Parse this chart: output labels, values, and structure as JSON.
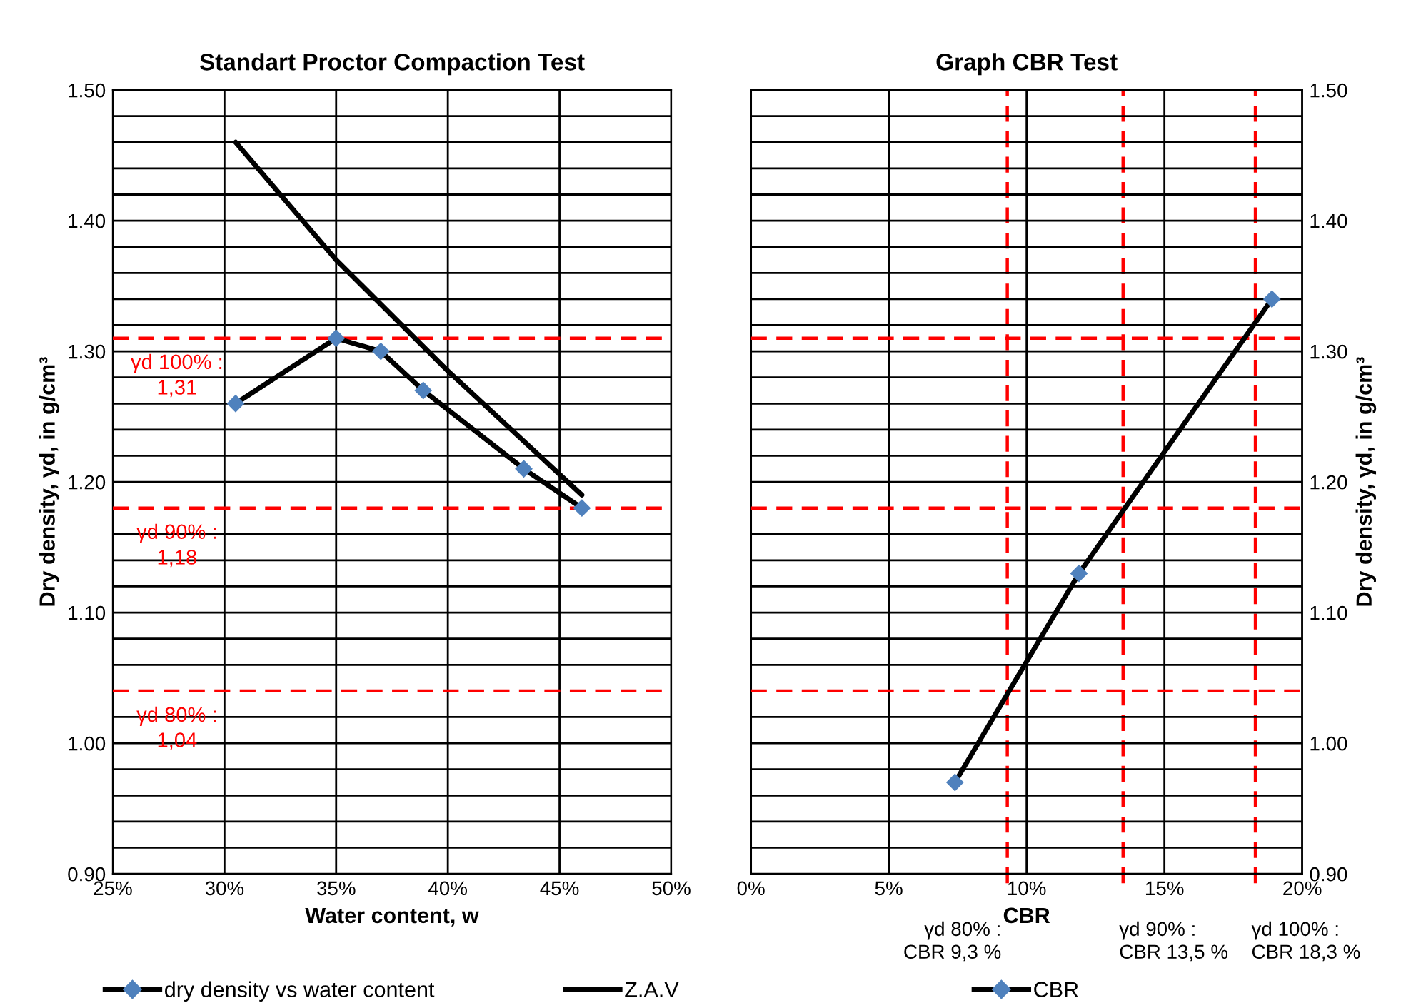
{
  "chart_data": [
    {
      "type": "line",
      "title": "Standart Proctor Compaction Test",
      "xlabel": "Water content, w",
      "ylabel": "Dry density, γd, in g/cm³",
      "xlim": [
        25,
        50
      ],
      "xticks": [
        {
          "value": 25,
          "label": "25%"
        },
        {
          "value": 30,
          "label": "30%"
        },
        {
          "value": 35,
          "label": "35%"
        },
        {
          "value": 40,
          "label": "40%"
        },
        {
          "value": 45,
          "label": "45%"
        },
        {
          "value": 50,
          "label": "50%"
        }
      ],
      "ylim": [
        0.9,
        1.5
      ],
      "yticks": [
        {
          "value": 0.9,
          "label": "0.90"
        },
        {
          "value": 0.92,
          "label": null
        },
        {
          "value": 0.94,
          "label": null
        },
        {
          "value": 0.96,
          "label": null
        },
        {
          "value": 0.98,
          "label": null
        },
        {
          "value": 1.0,
          "label": "1.00"
        },
        {
          "value": 1.02,
          "label": null
        },
        {
          "value": 1.06,
          "label": null
        },
        {
          "value": 1.08,
          "label": null
        },
        {
          "value": 1.1,
          "label": "1.10"
        },
        {
          "value": 1.12,
          "label": null
        },
        {
          "value": 1.14,
          "label": null
        },
        {
          "value": 1.16,
          "label": null
        },
        {
          "value": 1.2,
          "label": "1.20"
        },
        {
          "value": 1.22,
          "label": null
        },
        {
          "value": 1.24,
          "label": null
        },
        {
          "value": 1.26,
          "label": null
        },
        {
          "value": 1.28,
          "label": null
        },
        {
          "value": 1.3,
          "label": "1.30"
        },
        {
          "value": 1.32,
          "label": null
        },
        {
          "value": 1.34,
          "label": null
        },
        {
          "value": 1.36,
          "label": null
        },
        {
          "value": 1.38,
          "label": null
        },
        {
          "value": 1.4,
          "label": "1.40"
        },
        {
          "value": 1.42,
          "label": null
        },
        {
          "value": 1.44,
          "label": null
        },
        {
          "value": 1.46,
          "label": null
        },
        {
          "value": 1.48,
          "label": null
        },
        {
          "value": 1.5,
          "label": "1.50"
        }
      ],
      "grid": true,
      "legend": "bottom",
      "series": [
        {
          "name": "dry density vs water content",
          "color": "#000000",
          "colors": [
            "#4f81bd",
            "#4f81bd",
            "#4f81bd",
            "#4f81bd",
            "#4f81bd",
            "#4f81bd"
          ],
          "marker": "diamond",
          "x": [
            30.5,
            35.0,
            37.0,
            38.9,
            43.4,
            46.0
          ],
          "values": [
            1.26,
            1.31,
            1.3,
            1.27,
            1.21,
            1.18
          ]
        },
        {
          "name": "Z.A.V",
          "color": "#000000",
          "marker": "none",
          "x": [
            30.5,
            35.0,
            40.0,
            46.0
          ],
          "values": [
            1.46,
            1.37,
            1.285,
            1.19
          ]
        }
      ],
      "ref_lines": [
        {
          "axis": "y",
          "value": 1.31,
          "label": "γd 100% :\n1,31",
          "color": "#ff0000",
          "line_style": "dashed"
        },
        {
          "axis": "y",
          "value": 1.18,
          "label": "γd 90% :\n1,18",
          "color": "#ff0000",
          "line_style": "dashed"
        },
        {
          "axis": "y",
          "value": 1.04,
          "label": "γd 80% :\n1,04",
          "color": "#ff0000",
          "line_style": "dashed"
        }
      ]
    },
    {
      "type": "line",
      "title": "Graph CBR Test",
      "xlabel": "CBR",
      "y2label": "Dry density, γd, in g/cm³",
      "xlim": [
        0,
        20
      ],
      "xticks": [
        {
          "value": 0,
          "label": "0%"
        },
        {
          "value": 5,
          "label": "5%"
        },
        {
          "value": 10,
          "label": "10%"
        },
        {
          "value": 15,
          "label": "15%"
        },
        {
          "value": 20,
          "label": "20%"
        }
      ],
      "y2lim": [
        0.9,
        1.5
      ],
      "y2ticks": [
        {
          "value": 0.9,
          "label": "0.90"
        },
        {
          "value": 0.92,
          "label": null
        },
        {
          "value": 0.94,
          "label": null
        },
        {
          "value": 0.96,
          "label": null
        },
        {
          "value": 0.98,
          "label": null
        },
        {
          "value": 1.0,
          "label": "1.00"
        },
        {
          "value": 1.02,
          "label": null
        },
        {
          "value": 1.06,
          "label": null
        },
        {
          "value": 1.08,
          "label": null
        },
        {
          "value": 1.1,
          "label": "1.10"
        },
        {
          "value": 1.12,
          "label": null
        },
        {
          "value": 1.14,
          "label": null
        },
        {
          "value": 1.16,
          "label": null
        },
        {
          "value": 1.2,
          "label": "1.20"
        },
        {
          "value": 1.22,
          "label": null
        },
        {
          "value": 1.24,
          "label": null
        },
        {
          "value": 1.26,
          "label": null
        },
        {
          "value": 1.28,
          "label": null
        },
        {
          "value": 1.3,
          "label": "1.30"
        },
        {
          "value": 1.32,
          "label": null
        },
        {
          "value": 1.34,
          "label": null
        },
        {
          "value": 1.36,
          "label": null
        },
        {
          "value": 1.38,
          "label": null
        },
        {
          "value": 1.4,
          "label": "1.40"
        },
        {
          "value": 1.42,
          "label": null
        },
        {
          "value": 1.44,
          "label": null
        },
        {
          "value": 1.46,
          "label": null
        },
        {
          "value": 1.48,
          "label": null
        },
        {
          "value": 1.5,
          "label": "1.50"
        }
      ],
      "grid": true,
      "legend": "bottom",
      "series": [
        {
          "name": "CBR",
          "axis": "y2",
          "color": "#000000",
          "colors": [
            "#4f81bd",
            "#4f81bd",
            "#4f81bd"
          ],
          "marker": "diamond",
          "x": [
            7.4,
            11.9,
            18.9
          ],
          "values": [
            0.97,
            1.13,
            1.34
          ]
        }
      ],
      "ref_lines": [
        {
          "axis": "y2",
          "value": 1.31,
          "color": "#ff0000",
          "line_style": "dashed"
        },
        {
          "axis": "y2",
          "value": 1.18,
          "color": "#ff0000",
          "line_style": "dashed"
        },
        {
          "axis": "y2",
          "value": 1.04,
          "color": "#ff0000",
          "line_style": "dashed"
        },
        {
          "axis": "x",
          "value": 9.3,
          "label": "γd 80% :\nCBR 9,3 %",
          "color": "#ff0000",
          "line_style": "dashed"
        },
        {
          "axis": "x",
          "value": 13.5,
          "label": "γd 90% :\nCBR 13,5 %",
          "color": "#ff0000",
          "line_style": "dashed"
        },
        {
          "axis": "x",
          "value": 18.3,
          "label": "γd 100% :\nCBR 18,3 %",
          "color": "#ff0000",
          "line_style": "dashed"
        }
      ]
    }
  ]
}
